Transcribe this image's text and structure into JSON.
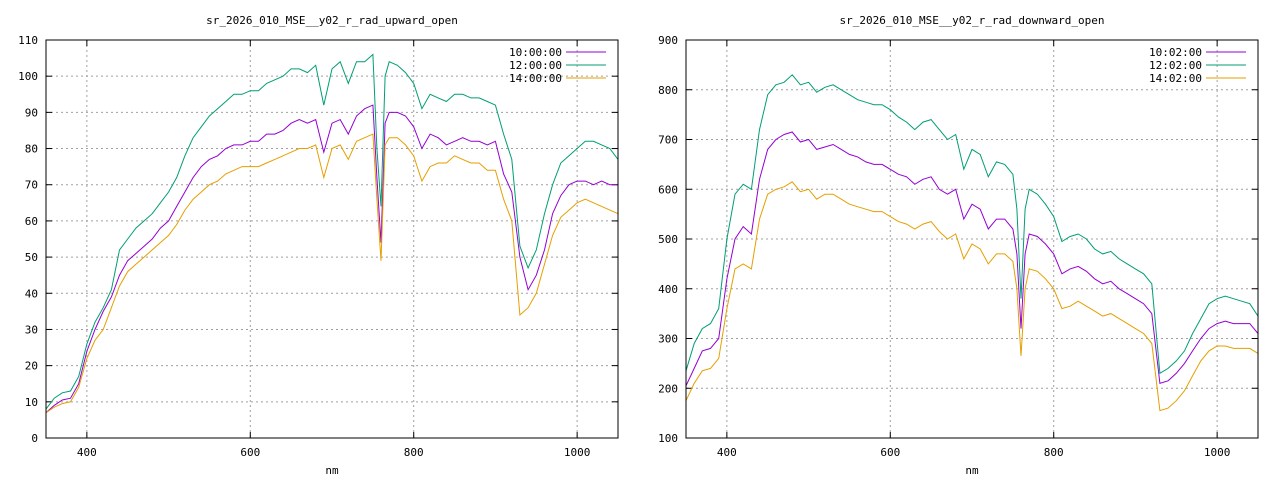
{
  "chart_data": [
    {
      "type": "line",
      "title": "sr_2026_010_MSE__y02_r_rad_upward_open",
      "xlabel": "nm",
      "ylabel": "",
      "xlim": [
        350,
        1050
      ],
      "ylim": [
        0,
        110
      ],
      "xticks": [
        400,
        600,
        800,
        1000
      ],
      "yticks": [
        0,
        10,
        20,
        30,
        40,
        50,
        60,
        70,
        80,
        90,
        100,
        110
      ],
      "grid": true,
      "legend": "top-right",
      "x": [
        350,
        360,
        370,
        380,
        390,
        400,
        410,
        420,
        430,
        440,
        450,
        460,
        470,
        480,
        490,
        500,
        510,
        520,
        530,
        540,
        550,
        560,
        570,
        580,
        590,
        600,
        610,
        620,
        630,
        640,
        650,
        660,
        670,
        680,
        690,
        700,
        710,
        720,
        730,
        740,
        750,
        755,
        760,
        765,
        770,
        780,
        790,
        800,
        810,
        820,
        830,
        840,
        850,
        860,
        870,
        880,
        890,
        900,
        910,
        920,
        930,
        940,
        950,
        960,
        970,
        980,
        990,
        1000,
        1010,
        1020,
        1030,
        1040,
        1050
      ],
      "series": [
        {
          "name": "10:00:00",
          "color": "#9400d3",
          "values": [
            7,
            9,
            10.5,
            11,
            15,
            24,
            30,
            35,
            39,
            45,
            49,
            51,
            53,
            55,
            58,
            60,
            64,
            68,
            72,
            75,
            77,
            78,
            80,
            81,
            81,
            82,
            82,
            84,
            84,
            85,
            87,
            88,
            87,
            88,
            79,
            87,
            88,
            84,
            89,
            91,
            92,
            72,
            54,
            87,
            90,
            90,
            89,
            86,
            80,
            84,
            83,
            81,
            82,
            83,
            82,
            82,
            81,
            82,
            73,
            68,
            50,
            41,
            45,
            52,
            62,
            67,
            70,
            71,
            71,
            70,
            71,
            70,
            70
          ],
          "ex_values_note": ""
        },
        {
          "name": "12:00:00",
          "color": "#009e73",
          "values": [
            8,
            11,
            12.5,
            13,
            17,
            26,
            32,
            36,
            41,
            52,
            55,
            58,
            60,
            62,
            65,
            68,
            72,
            78,
            83,
            86,
            89,
            91,
            93,
            95,
            95,
            96,
            96,
            98,
            99,
            100,
            102,
            102,
            101,
            103,
            92,
            102,
            104,
            98,
            104,
            104,
            106,
            80,
            64,
            100,
            104,
            103,
            101,
            98,
            91,
            95,
            94,
            93,
            95,
            95,
            94,
            94,
            93,
            92,
            84,
            77,
            53,
            47,
            52,
            62,
            70,
            76,
            78,
            80,
            82,
            82,
            81,
            80,
            77
          ]
        },
        {
          "name": "14:00:00",
          "color": "#e69f00",
          "values": [
            7,
            8.5,
            9.5,
            10,
            14,
            22,
            27,
            30,
            36,
            42,
            46,
            48,
            50,
            52,
            54,
            56,
            59,
            63,
            66,
            68,
            70,
            71,
            73,
            74,
            75,
            75,
            75,
            76,
            77,
            78,
            79,
            80,
            80,
            81,
            72,
            80,
            81,
            77,
            82,
            83,
            84,
            66,
            49,
            81,
            83,
            83,
            81,
            78,
            71,
            75,
            76,
            76,
            78,
            77,
            76,
            76,
            74,
            74,
            66,
            60,
            34,
            36,
            40,
            48,
            56,
            61,
            63,
            65,
            66,
            65,
            64,
            63,
            62
          ]
        }
      ]
    },
    {
      "type": "line",
      "title": "sr_2026_010_MSE__y02_r_rad_downward_open",
      "xlabel": "nm",
      "ylabel": "",
      "xlim": [
        350,
        1050
      ],
      "ylim": [
        100,
        900
      ],
      "xticks": [
        400,
        600,
        800,
        1000
      ],
      "yticks": [
        100,
        200,
        300,
        400,
        500,
        600,
        700,
        800,
        900
      ],
      "grid": true,
      "legend": "top-right",
      "x": [
        350,
        360,
        370,
        380,
        390,
        400,
        410,
        420,
        430,
        440,
        450,
        460,
        470,
        480,
        490,
        500,
        510,
        520,
        530,
        540,
        550,
        560,
        570,
        580,
        590,
        600,
        610,
        620,
        630,
        640,
        650,
        660,
        670,
        680,
        690,
        700,
        710,
        720,
        730,
        740,
        750,
        755,
        760,
        765,
        770,
        780,
        790,
        800,
        810,
        820,
        830,
        840,
        850,
        860,
        870,
        880,
        890,
        900,
        910,
        920,
        930,
        940,
        950,
        960,
        970,
        980,
        990,
        1000,
        1010,
        1020,
        1030,
        1040,
        1050
      ],
      "series": [
        {
          "name": "10:02:00",
          "color": "#9400d3",
          "values": [
            205,
            240,
            275,
            280,
            300,
            420,
            500,
            525,
            510,
            620,
            680,
            700,
            710,
            715,
            695,
            700,
            680,
            685,
            690,
            680,
            670,
            665,
            655,
            650,
            650,
            640,
            630,
            625,
            610,
            620,
            625,
            600,
            590,
            600,
            540,
            570,
            560,
            520,
            540,
            540,
            520,
            470,
            320,
            470,
            510,
            505,
            490,
            470,
            430,
            440,
            445,
            435,
            420,
            410,
            415,
            400,
            390,
            380,
            370,
            350,
            210,
            215,
            230,
            250,
            275,
            300,
            320,
            330,
            335,
            330,
            330,
            330,
            310
          ]
        },
        {
          "name": "12:02:00",
          "color": "#009e73",
          "values": [
            235,
            290,
            320,
            330,
            360,
            500,
            590,
            610,
            600,
            720,
            790,
            810,
            815,
            830,
            810,
            815,
            795,
            805,
            810,
            800,
            790,
            780,
            775,
            770,
            770,
            760,
            745,
            735,
            720,
            735,
            740,
            720,
            700,
            710,
            640,
            680,
            670,
            625,
            655,
            650,
            630,
            560,
            380,
            560,
            600,
            590,
            570,
            545,
            495,
            505,
            510,
            500,
            480,
            470,
            475,
            460,
            450,
            440,
            430,
            410,
            230,
            240,
            255,
            275,
            310,
            340,
            370,
            380,
            385,
            380,
            375,
            370,
            345
          ]
        },
        {
          "name": "14:02:00",
          "color": "#e69f00",
          "values": [
            175,
            210,
            235,
            240,
            260,
            360,
            440,
            450,
            440,
            540,
            590,
            600,
            605,
            615,
            595,
            600,
            580,
            590,
            590,
            580,
            570,
            565,
            560,
            555,
            555,
            545,
            535,
            530,
            520,
            530,
            535,
            515,
            500,
            510,
            460,
            490,
            480,
            450,
            470,
            470,
            455,
            400,
            265,
            400,
            440,
            435,
            420,
            400,
            360,
            365,
            375,
            365,
            355,
            345,
            350,
            340,
            330,
            320,
            310,
            290,
            155,
            160,
            175,
            195,
            225,
            255,
            275,
            285,
            285,
            280,
            280,
            280,
            270
          ]
        }
      ]
    }
  ]
}
